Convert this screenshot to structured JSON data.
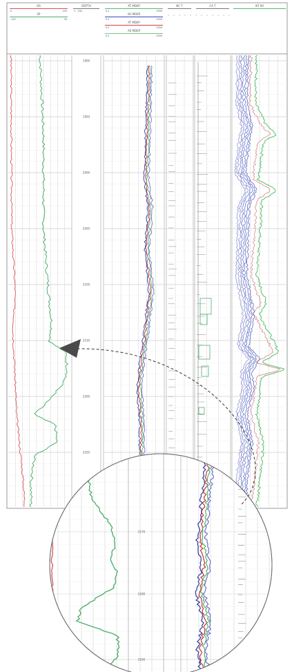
{
  "header": {
    "tracks": [
      {
        "curves": [
          {
            "name": "GR",
            "color": "#d9534f",
            "scale": [
              "0",
              "",
              "150"
            ]
          },
          {
            "name": "SP",
            "color": "#4fae6e",
            "scale": [
              "-120",
              "",
              "30"
            ]
          }
        ]
      },
      {
        "curves": [
          {
            "name": "DEPTH",
            "color": "#777777",
            "scale": [
              "1 : 200",
              "",
              ""
            ]
          }
        ]
      },
      {
        "curves": [
          {
            "name": "AT MDEP",
            "color": "#57b86b",
            "scale": [
              "0.2",
              "",
              "2000"
            ]
          },
          {
            "name": "AO MDEP",
            "color": "#3b49b5",
            "scale": [
              "0.2",
              "",
              "2000"
            ]
          },
          {
            "name": "AT MDEP",
            "color": "#c9404a",
            "scale": [
              "0.2",
              "",
              "2000"
            ]
          },
          {
            "name": "A0 MDEP",
            "color": "#7fbf8f",
            "scale": [
              "0.2",
              "",
              "2000"
            ]
          }
        ]
      },
      {
        "curves": [
          {
            "name": "NC T",
            "color": "#777777",
            "scale": [
              "",
              "",
              ""
            ]
          }
        ]
      },
      {
        "curves": [
          {
            "name": "CA T",
            "color": "#777777",
            "scale": [
              "",
              "",
              ""
            ]
          }
        ]
      },
      {
        "curves": [
          {
            "name": "NT 90",
            "color": "#57b86b",
            "scale": [
              "",
              "",
              ""
            ]
          }
        ]
      }
    ]
  },
  "depth_labels": [
    "1900",
    "1950",
    "2000",
    "2050",
    "2100",
    "2150",
    "2200",
    "2250"
  ],
  "zoom": {
    "depth_labels": [
      "2170",
      "2180",
      "2190"
    ]
  },
  "colors": {
    "gr": "#d9534f",
    "sp": "#4fae6e",
    "blue": "#3040b8",
    "green": "#56c16a",
    "red": "#c24050",
    "grid": "#d0d0d0",
    "callout": "#333333"
  },
  "icons": {
    "pointer": "arrowhead-icon"
  }
}
